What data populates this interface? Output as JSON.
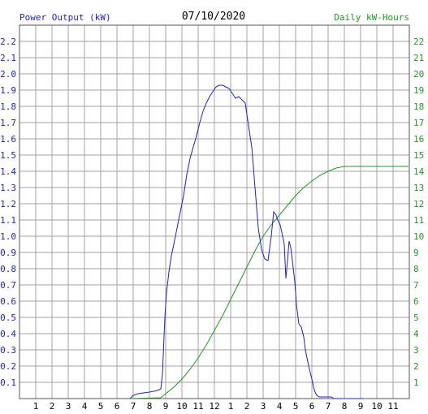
{
  "header": {
    "left_label": "Power Output (kW)",
    "date": "07/10/2020",
    "right_label": "Daily kW-Hours"
  },
  "colors": {
    "power": "#1f1fd0",
    "energy": "#1f9a1f",
    "grid": "#a0a0a0",
    "left_axis_text": "#1f1fd0",
    "right_axis_text": "#1f9a1f"
  },
  "chart_data": {
    "type": "line",
    "grid": true,
    "x_ticks": [
      "1",
      "2",
      "3",
      "4",
      "5",
      "6",
      "7",
      "8",
      "9",
      "10",
      "11",
      "12",
      "1",
      "2",
      "3",
      "4",
      "5",
      "6",
      "7",
      "8",
      "9",
      "10",
      "11"
    ],
    "xlim": [
      0,
      24
    ],
    "ylim_left": [
      0,
      2.3
    ],
    "ylim_right": [
      0,
      23
    ],
    "y_ticks_left": [
      "0.1",
      "0.2",
      "0.3",
      "0.4",
      "0.5",
      "0.6",
      "0.7",
      "0.8",
      "0.9",
      "1.0",
      "1.1",
      "1.2",
      "1.3",
      "1.4",
      "1.5",
      "1.6",
      "1.7",
      "1.8",
      "1.9",
      "2.0",
      "2.1",
      "2.2"
    ],
    "y_ticks_right": [
      "1",
      "2",
      "3",
      "4",
      "5",
      "6",
      "7",
      "8",
      "9",
      "10",
      "11",
      "12",
      "13",
      "14",
      "15",
      "16",
      "17",
      "18",
      "19",
      "20",
      "21",
      "22"
    ],
    "series": [
      {
        "axis": "left",
        "x": [
          6.8,
          7.0,
          7.3,
          8.0,
          8.5,
          8.7,
          8.8,
          8.95,
          9.05,
          9.2,
          9.35,
          9.5,
          9.7,
          9.9,
          10.1,
          10.3,
          10.5,
          10.7,
          10.9,
          11.1,
          11.3,
          11.5,
          11.7,
          11.9,
          12.1,
          12.3,
          12.5,
          12.7,
          12.9,
          13.1,
          13.3,
          13.5,
          13.7,
          13.9,
          14.1,
          14.3,
          14.5,
          14.7,
          14.9,
          15.1,
          15.3,
          15.5,
          15.65,
          15.8,
          15.9,
          16.05,
          16.2,
          16.3,
          16.4,
          16.5,
          16.6,
          16.7,
          16.8,
          16.95,
          17.05,
          17.2,
          17.35,
          17.5,
          17.6,
          17.7,
          17.85,
          18.0,
          18.1,
          18.2,
          18.3,
          18.45,
          18.6,
          18.75,
          18.9,
          19.05,
          19.2,
          19.35,
          19.5,
          19.65,
          19.8,
          19.9,
          20.0,
          20.1,
          20.25,
          20.5,
          21.0,
          21.2
        ],
        "values": [
          0.0,
          0.02,
          0.03,
          0.04,
          0.05,
          0.06,
          0.15,
          0.5,
          0.65,
          0.78,
          0.88,
          0.95,
          1.05,
          1.15,
          1.25,
          1.38,
          1.48,
          1.55,
          1.62,
          1.7,
          1.77,
          1.82,
          1.86,
          1.89,
          1.92,
          1.93,
          1.93,
          1.92,
          1.91,
          1.88,
          1.85,
          1.86,
          1.84,
          1.82,
          1.68,
          1.55,
          1.3,
          1.05,
          0.92,
          0.86,
          0.85,
          1.0,
          1.15,
          1.13,
          1.1,
          1.07,
          1.0,
          0.95,
          0.74,
          0.85,
          0.97,
          0.93,
          0.85,
          0.72,
          0.58,
          0.46,
          0.44,
          0.38,
          0.3,
          0.25,
          0.18,
          0.12,
          0.07,
          0.04,
          0.02,
          0.01,
          0.01,
          0.01,
          0.01,
          0.01,
          0.01,
          0.0,
          0.0,
          0.0,
          0.0,
          0.0,
          0.0,
          0.0,
          0.0,
          0.0,
          0.0,
          0.0
        ]
      },
      {
        "axis": "right",
        "x": [
          6.8,
          8.7,
          9.0,
          9.5,
          10.0,
          10.5,
          11.0,
          11.5,
          12.0,
          12.5,
          13.0,
          13.5,
          14.0,
          14.5,
          15.0,
          15.5,
          16.0,
          16.5,
          17.0,
          17.5,
          18.0,
          18.5,
          19.0,
          19.5,
          20.0,
          20.5,
          21.0,
          22.0,
          23.0,
          23.95
        ],
        "values": [
          0.0,
          0.05,
          0.3,
          0.7,
          1.2,
          1.8,
          2.5,
          3.3,
          4.2,
          5.1,
          6.1,
          7.1,
          8.1,
          9.1,
          10.0,
          10.7,
          11.3,
          11.9,
          12.5,
          13.0,
          13.4,
          13.75,
          14.0,
          14.2,
          14.3,
          14.3,
          14.3,
          14.3,
          14.3,
          14.3
        ]
      }
    ]
  }
}
